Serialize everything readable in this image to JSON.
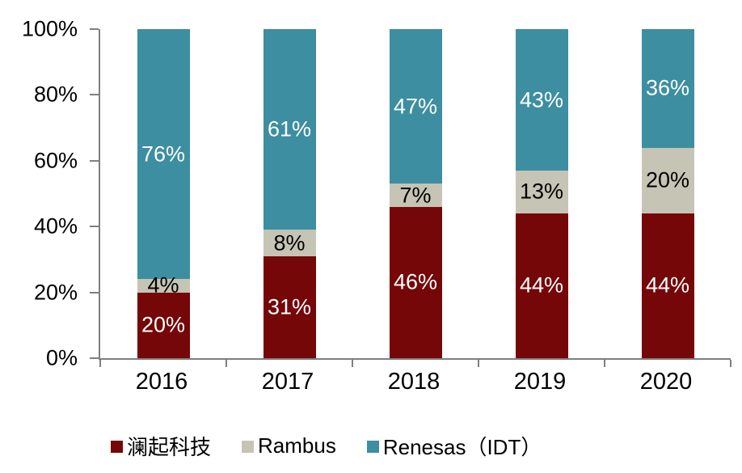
{
  "chart_data": {
    "type": "bar",
    "variant": "stacked-100-percent",
    "title": "",
    "categories": [
      "2016",
      "2017",
      "2018",
      "2019",
      "2020"
    ],
    "series": [
      {
        "name": "澜起科技",
        "color": "#750708",
        "label_color": "#FFFFFF",
        "values": [
          20,
          31,
          46,
          44,
          44
        ],
        "labels": [
          "20%",
          "31%",
          "46%",
          "44%",
          "44%"
        ]
      },
      {
        "name": "Rambus",
        "color": "#C6C4B4",
        "label_color": "#000000",
        "values": [
          4,
          8,
          7,
          13,
          20
        ],
        "labels": [
          "4%",
          "8%",
          "7%",
          "13%",
          "20%"
        ]
      },
      {
        "name": "Renesas（IDT）",
        "color": "#3D8EA1",
        "label_color": "#FFFFFF",
        "values": [
          76,
          61,
          47,
          43,
          36
        ],
        "labels": [
          "76%",
          "61%",
          "47%",
          "43%",
          "36%"
        ]
      }
    ],
    "y_axis": {
      "min": 0,
      "max": 100,
      "tick_labels": [
        "100%",
        "80%",
        "60%",
        "40%",
        "20%",
        "0%"
      ]
    },
    "x_axis": {
      "label": ""
    },
    "legend": {
      "position": "bottom",
      "entries": [
        "澜起科技",
        "Rambus",
        "Renesas（IDT）"
      ]
    },
    "grid": false,
    "axis_color": "#7F7F7F",
    "text_color": "#000000",
    "background": "#FFFFFF"
  }
}
